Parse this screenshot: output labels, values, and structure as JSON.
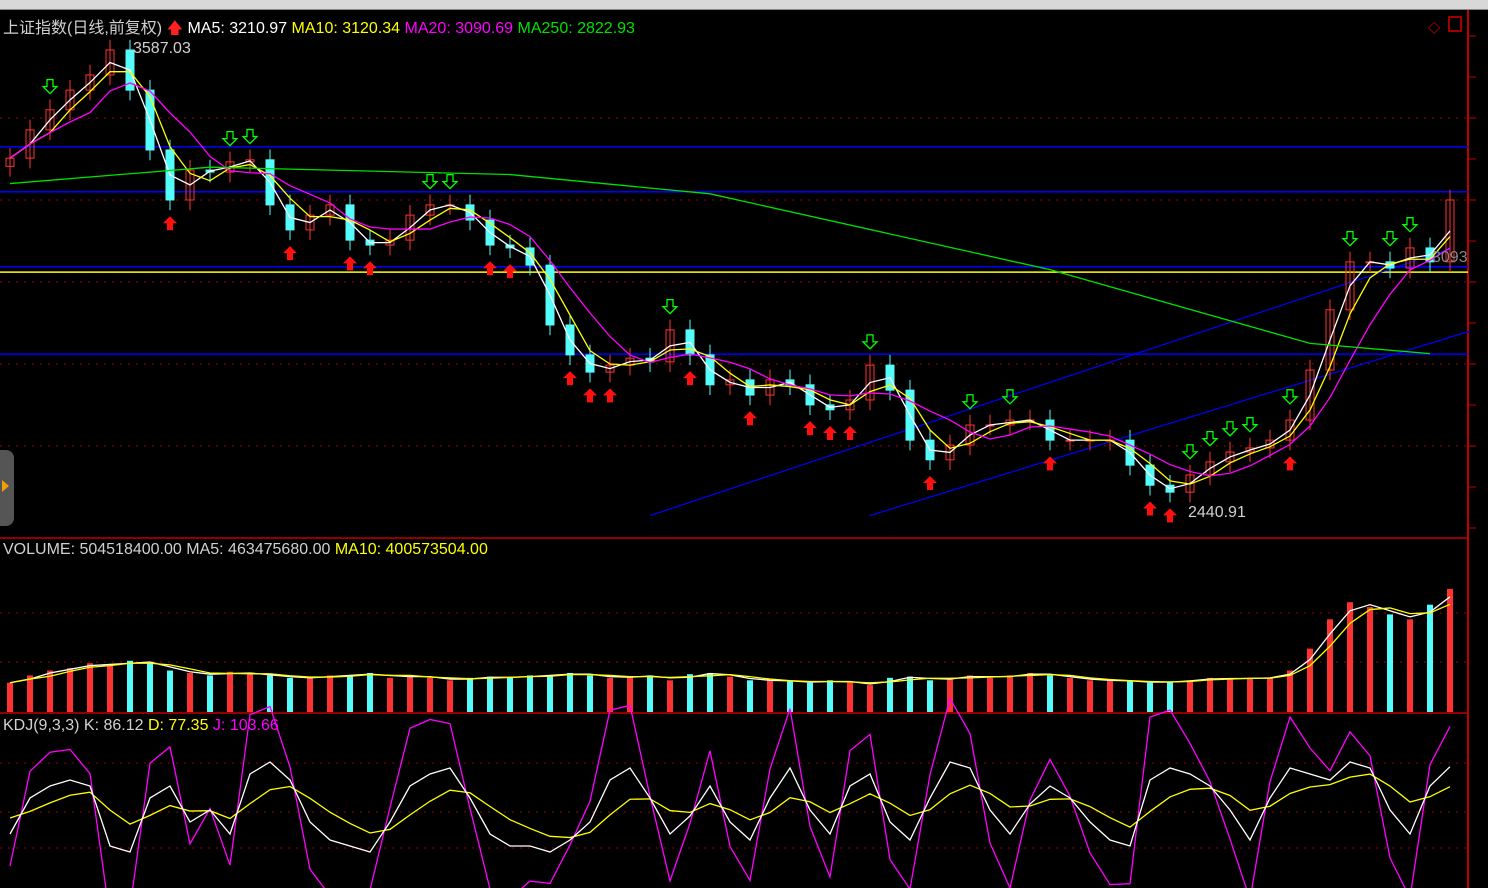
{
  "colors": {
    "up": "#ff3232",
    "down": "#54fcfc",
    "ma5": "#ffffff",
    "ma10": "#ffff00",
    "ma20": "#ff00ff",
    "ma250": "#00e000",
    "hline": "#0000ff",
    "grid": "#a00000",
    "axis": "#c00000"
  },
  "header": {
    "title": "上证指数(日线,前复权)",
    "ma5": "MA5: 3210.97",
    "ma10": "MA10: 3120.34",
    "ma20": "MA20: 3090.69",
    "ma250": "MA250: 2822.93"
  },
  "volume_header": {
    "volume": "VOLUME: 504518400.00",
    "ma5": "MA5: 463475680.00",
    "ma10": "MA10: 400573504.00"
  },
  "kdj_header": {
    "name": "KDJ(9,3,3)",
    "k": "K: 86.12",
    "d": "D: 77.35",
    "j": "J: 103.66"
  },
  "annotations": {
    "high": "3587.03",
    "low": "2440.91",
    "right_price": "3093"
  },
  "chart_data": {
    "type": "candlestick",
    "close": [
      3302,
      3371,
      3420,
      3468,
      3505,
      3566,
      3468,
      3322,
      3200,
      3273,
      3268,
      3293,
      3298,
      3188,
      3127,
      3163,
      3188,
      3102,
      3090,
      3102,
      3163,
      3188,
      3188,
      3151,
      3090,
      3083,
      3041,
      2895,
      2822,
      2780,
      2797,
      2814,
      2805,
      2883,
      2822,
      2749,
      2761,
      2724,
      2761,
      2749,
      2700,
      2688,
      2712,
      2797,
      2736,
      2614,
      2566,
      2602,
      2651,
      2651,
      2663,
      2663,
      2614,
      2614,
      2614,
      2614,
      2553,
      2504,
      2487,
      2529,
      2561,
      2585,
      2595,
      2614,
      2663,
      2785,
      2932,
      3049,
      3049,
      3034,
      3083,
      3049,
      3200
    ],
    "ma250": [
      [
        0,
        3240
      ],
      [
        10,
        3280
      ],
      [
        25,
        3262
      ],
      [
        35,
        3215
      ],
      [
        52,
        3030
      ],
      [
        65,
        2850
      ],
      [
        71,
        2825
      ]
    ],
    "horizontal_lines": [
      {
        "value": 3330,
        "color": "#0000ff"
      },
      {
        "value": 3220,
        "color": "#0000ff"
      },
      {
        "value": 3037,
        "color": "#0000ff"
      },
      {
        "value": 3024,
        "color": "#ffff00"
      },
      {
        "value": 2824,
        "color": "#0000ff"
      }
    ],
    "trend_lines": [
      [
        [
          32,
          2430
        ],
        [
          72,
          3080
        ]
      ],
      [
        [
          43,
          2430
        ],
        [
          73,
          2880
        ]
      ]
    ],
    "buy_signals": [
      8,
      14,
      17,
      18,
      24,
      25,
      28,
      29,
      30,
      34,
      37,
      40,
      41,
      42,
      46,
      52,
      57,
      58,
      64
    ],
    "sell_signals": [
      2,
      11,
      12,
      21,
      22,
      33,
      43,
      48,
      50,
      59,
      60,
      61,
      62,
      64,
      67,
      69,
      70
    ],
    "price_grid": [
      3400,
      3200,
      3000,
      2800,
      2600
    ],
    "volume_millions": [
      120,
      150,
      170,
      180,
      200,
      190,
      210,
      200,
      170,
      160,
      150,
      165,
      155,
      150,
      140,
      140,
      150,
      150,
      160,
      140,
      150,
      140,
      130,
      140,
      145,
      140,
      150,
      150,
      160,
      150,
      140,
      145,
      150,
      130,
      155,
      160,
      145,
      130,
      130,
      125,
      120,
      130,
      120,
      110,
      140,
      145,
      130,
      140,
      150,
      140,
      150,
      160,
      150,
      140,
      130,
      130,
      125,
      120,
      125,
      130,
      140,
      135,
      140,
      140,
      170,
      260,
      380,
      450,
      430,
      400,
      380,
      440,
      504.5
    ],
    "kdj_k": [
      30,
      60,
      70,
      75,
      70,
      20,
      15,
      60,
      70,
      40,
      50,
      30,
      80,
      90,
      75,
      40,
      25,
      20,
      15,
      40,
      70,
      80,
      85,
      60,
      30,
      20,
      20,
      15,
      25,
      40,
      75,
      85,
      60,
      30,
      45,
      70,
      40,
      25,
      60,
      85,
      50,
      30,
      70,
      80,
      40,
      25,
      60,
      90,
      85,
      50,
      30,
      55,
      70,
      60,
      40,
      25,
      20,
      75,
      85,
      80,
      70,
      50,
      25,
      60,
      85,
      80,
      75,
      90,
      85,
      50,
      30,
      70,
      86.12
    ]
  }
}
